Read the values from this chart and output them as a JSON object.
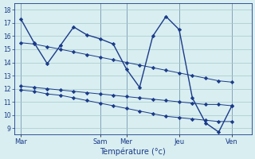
{
  "background_color": "#d8eef0",
  "grid_color": "#a8c8cc",
  "line_color": "#1a3a8a",
  "xlabel": "Température (°c)",
  "x_ticks_pos": [
    0,
    6,
    8,
    12,
    16
  ],
  "x_ticks_labels": [
    "Mar",
    "Sam",
    "Mer",
    "Jeu",
    "Ven"
  ],
  "xlim": [
    -0.5,
    17.5
  ],
  "ylim": [
    8.5,
    18.5
  ],
  "yticks": [
    9,
    10,
    11,
    12,
    13,
    14,
    15,
    16,
    17,
    18
  ],
  "series_max": {
    "x": [
      0,
      1,
      2,
      3,
      4,
      5,
      6,
      7,
      8,
      9,
      10,
      11,
      12,
      13,
      14,
      15,
      16
    ],
    "y": [
      17.3,
      15.5,
      13.9,
      15.3,
      16.7,
      16.1,
      15.8,
      15.4,
      13.5,
      12.1,
      16.0,
      17.5,
      16.5,
      11.3,
      9.4,
      8.7,
      10.7
    ]
  },
  "series_upper": {
    "x": [
      0,
      1,
      2,
      3,
      4,
      5,
      6,
      7,
      8,
      9,
      10,
      11,
      12,
      13,
      14,
      15,
      16
    ],
    "y": [
      15.5,
      15.4,
      15.2,
      15.0,
      14.8,
      14.6,
      14.4,
      14.2,
      14.0,
      13.8,
      13.6,
      13.4,
      13.2,
      13.0,
      12.8,
      12.6,
      12.5
    ]
  },
  "series_lower": {
    "x": [
      0,
      1,
      2,
      3,
      4,
      5,
      6,
      7,
      8,
      9,
      10,
      11,
      12,
      13,
      14,
      15,
      16
    ],
    "y": [
      12.2,
      12.1,
      12.0,
      11.9,
      11.8,
      11.7,
      11.6,
      11.5,
      11.4,
      11.3,
      11.2,
      11.1,
      11.0,
      10.9,
      10.8,
      10.8,
      10.7
    ]
  },
  "series_min": {
    "x": [
      0,
      1,
      2,
      3,
      4,
      5,
      6,
      7,
      8,
      9,
      10,
      11,
      12,
      13,
      14,
      15,
      16
    ],
    "y": [
      11.9,
      11.8,
      11.6,
      11.5,
      11.3,
      11.1,
      10.9,
      10.7,
      10.5,
      10.3,
      10.1,
      9.9,
      9.8,
      9.7,
      9.6,
      9.5,
      9.5
    ]
  }
}
